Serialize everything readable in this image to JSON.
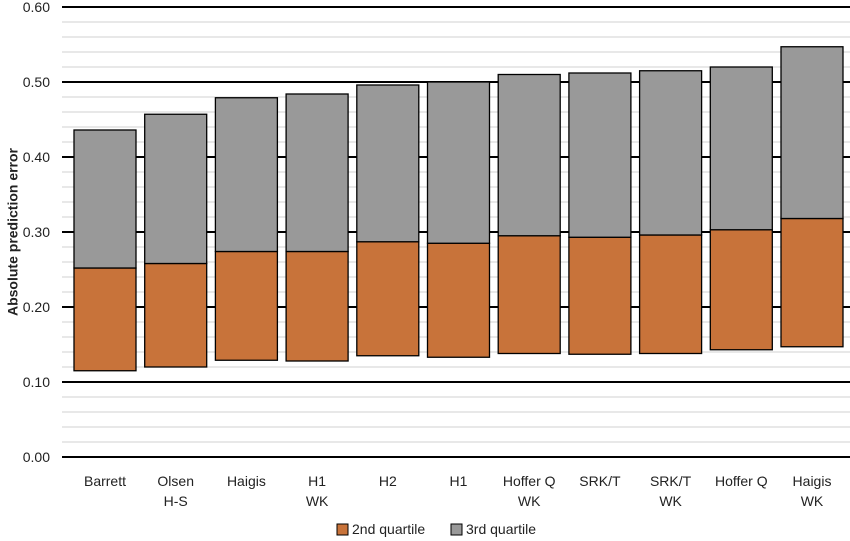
{
  "chart_data": {
    "type": "bar",
    "stacked": true,
    "ylabel": "Absolute prediction error",
    "ylim": [
      0,
      0.6
    ],
    "y_ticks": [
      "0.00",
      "0.10",
      "0.20",
      "0.30",
      "0.40",
      "0.50",
      "0.60"
    ],
    "grid": "major and minor horizontal gridlines",
    "legend_position": "bottom",
    "categories": [
      [
        "Barrett"
      ],
      [
        "Olsen",
        "H-S"
      ],
      [
        "Haigis"
      ],
      [
        "H1",
        "WK"
      ],
      [
        "H2"
      ],
      [
        "H1"
      ],
      [
        "Hoffer Q",
        "WK"
      ],
      [
        "SRK/T"
      ],
      [
        "SRK/T",
        "WK"
      ],
      [
        "Hoffer Q"
      ],
      [
        "Haigis",
        "WK"
      ]
    ],
    "series": [
      {
        "name": "2nd quartile",
        "color": "#c8733a",
        "low": [
          0.115,
          0.12,
          0.129,
          0.128,
          0.135,
          0.133,
          0.138,
          0.137,
          0.138,
          0.143,
          0.147
        ],
        "high": [
          0.252,
          0.258,
          0.274,
          0.274,
          0.287,
          0.285,
          0.295,
          0.293,
          0.296,
          0.303,
          0.318
        ]
      },
      {
        "name": "3rd quartile",
        "color": "#999999",
        "low": [
          0.252,
          0.258,
          0.274,
          0.274,
          0.287,
          0.285,
          0.295,
          0.293,
          0.296,
          0.303,
          0.318
        ],
        "high": [
          0.436,
          0.457,
          0.479,
          0.484,
          0.496,
          0.5,
          0.51,
          0.512,
          0.515,
          0.52,
          0.547
        ]
      }
    ]
  }
}
